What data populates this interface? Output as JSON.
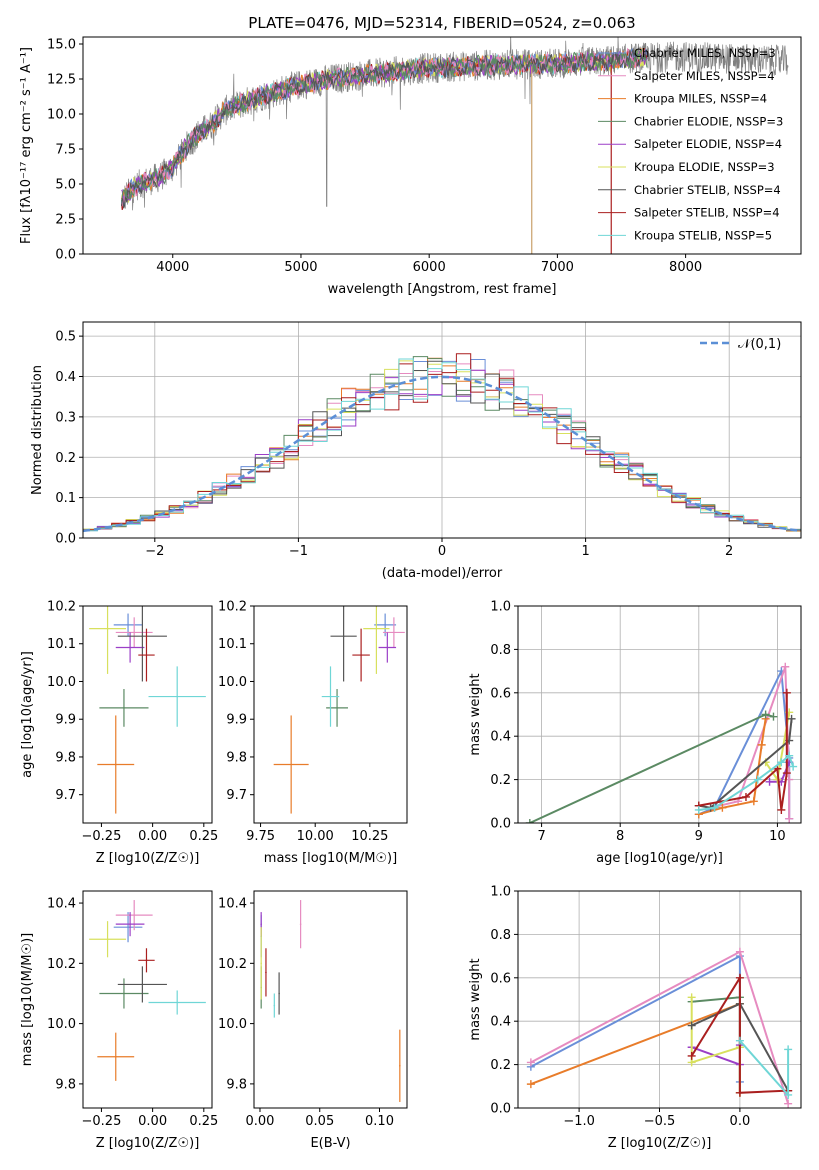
{
  "colors": [
    "#6a8fd8",
    "#e68bc0",
    "#e87c2a",
    "#5b8a63",
    "#9b3fc7",
    "#d8e05e",
    "#555555",
    "#aa1f1f",
    "#6fd6d6"
  ],
  "chart_data": [
    {
      "id": "spectrum",
      "type": "line",
      "title": "PLATE=0476, MJD=52314, FIBERID=0524, z=0.063",
      "xlabel": "wavelength [Angstrom, rest frame]",
      "ylabel": "Flux [fλ10⁻¹⁷ erg cm⁻² s⁻¹ A⁻¹]",
      "xlim": [
        3300,
        8900
      ],
      "ylim": [
        0,
        15.5
      ],
      "xticks": [
        4000,
        5000,
        6000,
        7000,
        8000
      ],
      "yticks": [
        0.0,
        2.5,
        5.0,
        7.5,
        10.0,
        12.5,
        15.0
      ],
      "continuum": {
        "x": [
          3600,
          3700,
          3800,
          3900,
          4000,
          4100,
          4200,
          4300,
          4400,
          4500,
          4700,
          5000,
          5300,
          5600,
          6000,
          6500,
          7000,
          7400,
          7600,
          8000,
          8500,
          8800
        ],
        "y": [
          3.8,
          4.8,
          5.2,
          5.5,
          6.2,
          7.6,
          8.6,
          9.2,
          10.2,
          10.6,
          11.3,
          12.1,
          12.6,
          12.9,
          13.3,
          13.5,
          13.6,
          13.8,
          14.0,
          14.1,
          13.9,
          13.8
        ]
      },
      "legend": [
        "Chabrier MILES, NSSP=3",
        "Salpeter MILES, NSSP=4",
        "Kroupa MILES, NSSP=4",
        "Chabrier ELODIE, NSSP=3",
        "Salpeter ELODIE, NSSP=4",
        "Kroupa ELODIE, NSSP=3",
        "Chabrier STELIB, NSSP=4",
        "Salpeter STELIB, NSSP=4",
        "Kroupa STELIB, NSSP=5"
      ],
      "legend_loc": "right"
    },
    {
      "id": "residuals",
      "type": "line",
      "xlabel": "(data-model)/error",
      "ylabel": "Normed distribution",
      "xlim": [
        -2.5,
        2.5
      ],
      "ylim": [
        0,
        0.535
      ],
      "xticks": [
        -2,
        -1,
        0,
        1,
        2
      ],
      "yticks": [
        0.0,
        0.1,
        0.2,
        0.3,
        0.4,
        0.5
      ],
      "grid": true,
      "gaussian_label": "𝒩(0,1)",
      "legend_loc": "top-right"
    },
    {
      "id": "age-vs-Z",
      "type": "scatter",
      "xlabel": "Z [log10(Z/Z☉)]",
      "ylabel": "age  [log10(age/yr)]",
      "xlim": [
        -0.34,
        0.29
      ],
      "ylim": [
        9.625,
        10.2
      ],
      "xticks": [
        -0.25,
        0.0,
        0.25
      ],
      "yticks": [
        9.7,
        9.8,
        9.9,
        10.0,
        10.1,
        10.2
      ],
      "points": [
        {
          "x": -0.12,
          "y": 10.15,
          "xerr": 0.07,
          "yerr": 0.03
        },
        {
          "x": -0.09,
          "y": 10.13,
          "xerr": 0.09,
          "yerr": 0.04
        },
        {
          "x": -0.18,
          "y": 9.78,
          "xerr": 0.09,
          "yerr": 0.13
        },
        {
          "x": -0.14,
          "y": 9.93,
          "xerr": 0.12,
          "yerr": 0.05
        },
        {
          "x": -0.11,
          "y": 10.09,
          "xerr": 0.07,
          "yerr": 0.04
        },
        {
          "x": -0.22,
          "y": 10.14,
          "xerr": 0.09,
          "yerr": 0.12
        },
        {
          "x": -0.05,
          "y": 10.12,
          "xerr": 0.12,
          "yerr": 0.12
        },
        {
          "x": -0.03,
          "y": 10.07,
          "xerr": 0.04,
          "yerr": 0.07
        },
        {
          "x": 0.12,
          "y": 9.96,
          "xerr": 0.14,
          "yerr": 0.08
        }
      ]
    },
    {
      "id": "age-vs-mass",
      "type": "scatter",
      "xlabel": "mass [log10(M/M☉)]",
      "ylabel": "",
      "xlim": [
        9.72,
        10.42
      ],
      "ylim": [
        9.625,
        10.2
      ],
      "xticks": [
        9.75,
        10.0,
        10.25
      ],
      "yticks": [
        9.7,
        9.8,
        9.9,
        10.0,
        10.1,
        10.2
      ],
      "points": [
        {
          "x": 10.32,
          "y": 10.15,
          "xerr": 0.05,
          "yerr": 0.03
        },
        {
          "x": 10.36,
          "y": 10.13,
          "xerr": 0.05,
          "yerr": 0.04
        },
        {
          "x": 9.89,
          "y": 9.78,
          "xerr": 0.08,
          "yerr": 0.13
        },
        {
          "x": 10.1,
          "y": 9.93,
          "xerr": 0.05,
          "yerr": 0.05
        },
        {
          "x": 10.33,
          "y": 10.09,
          "xerr": 0.04,
          "yerr": 0.04
        },
        {
          "x": 10.28,
          "y": 10.14,
          "xerr": 0.06,
          "yerr": 0.12
        },
        {
          "x": 10.13,
          "y": 10.12,
          "xerr": 0.06,
          "yerr": 0.12
        },
        {
          "x": 10.21,
          "y": 10.07,
          "xerr": 0.04,
          "yerr": 0.07
        },
        {
          "x": 10.07,
          "y": 9.96,
          "xerr": 0.04,
          "yerr": 0.08
        }
      ]
    },
    {
      "id": "mw-vs-age",
      "type": "line",
      "xlabel": "age  [log10(age/yr)]",
      "ylabel": "mass weight",
      "xlim": [
        6.7,
        10.3
      ],
      "ylim": [
        0,
        1.0
      ],
      "xticks": [
        7,
        8,
        9,
        10
      ],
      "yticks": [
        0.0,
        0.2,
        0.4,
        0.6,
        0.8,
        1.0
      ],
      "grid": true,
      "series": [
        {
          "x": [
            9.0,
            9.2,
            10.05,
            10.15,
            10.15
          ],
          "y": [
            0.04,
            0.07,
            0.7,
            0.3,
            0.02
          ]
        },
        {
          "x": [
            9.15,
            9.5,
            10.1,
            10.15,
            10.15
          ],
          "y": [
            0.07,
            0.1,
            0.72,
            0.2,
            0.02
          ]
        },
        {
          "x": [
            9.0,
            9.3,
            9.7,
            9.8,
            9.85
          ],
          "y": [
            0.04,
            0.07,
            0.1,
            0.36,
            0.48
          ]
        },
        {
          "x": [
            6.85,
            9.85,
            9.95
          ],
          "y": [
            0.0,
            0.5,
            0.49
          ]
        },
        {
          "x": [
            9.9,
            10.05,
            10.15
          ],
          "y": [
            0.19,
            0.19,
            0.28
          ]
        },
        {
          "x": [
            9.85,
            10.0,
            10.15
          ],
          "y": [
            0.28,
            0.2,
            0.51
          ]
        },
        {
          "x": [
            9.0,
            9.15,
            10.15,
            10.18
          ],
          "y": [
            0.08,
            0.07,
            0.38,
            0.48
          ]
        },
        {
          "x": [
            9.0,
            9.6,
            10.0,
            10.05,
            10.12,
            10.12
          ],
          "y": [
            0.08,
            0.12,
            0.25,
            0.06,
            0.23,
            0.6
          ]
        },
        {
          "x": [
            9.0,
            9.2,
            9.75,
            10.05,
            10.15,
            10.2
          ],
          "y": [
            0.06,
            0.07,
            0.2,
            0.28,
            0.31,
            0.26
          ]
        }
      ]
    },
    {
      "id": "mass-vs-Z",
      "type": "scatter",
      "xlabel": "Z [log10(Z/Z☉)]",
      "ylabel": "mass [log10(M/M☉)]",
      "xlim": [
        -0.34,
        0.29
      ],
      "ylim": [
        9.72,
        10.44
      ],
      "xticks": [
        -0.25,
        0.0,
        0.25
      ],
      "yticks": [
        9.8,
        10.0,
        10.2,
        10.4
      ],
      "points": [
        {
          "x": -0.12,
          "y": 10.32,
          "xerr": 0.07,
          "yerr": 0.05
        },
        {
          "x": -0.09,
          "y": 10.36,
          "xerr": 0.09,
          "yerr": 0.05
        },
        {
          "x": -0.18,
          "y": 9.89,
          "xerr": 0.09,
          "yerr": 0.08
        },
        {
          "x": -0.14,
          "y": 10.1,
          "xerr": 0.12,
          "yerr": 0.05
        },
        {
          "x": -0.11,
          "y": 10.33,
          "xerr": 0.07,
          "yerr": 0.04
        },
        {
          "x": -0.22,
          "y": 10.28,
          "xerr": 0.09,
          "yerr": 0.06
        },
        {
          "x": -0.05,
          "y": 10.13,
          "xerr": 0.12,
          "yerr": 0.06
        },
        {
          "x": -0.03,
          "y": 10.21,
          "xerr": 0.04,
          "yerr": 0.04
        },
        {
          "x": 0.12,
          "y": 10.07,
          "xerr": 0.14,
          "yerr": 0.04
        }
      ]
    },
    {
      "id": "mass-vs-EBV",
      "type": "scatter",
      "xlabel": "E(B-V)",
      "ylabel": "",
      "xlim": [
        -0.005,
        0.123
      ],
      "ylim": [
        9.72,
        10.44
      ],
      "xticks": [
        0.0,
        0.05,
        0.1
      ],
      "yticks": [
        9.8,
        10.0,
        10.2,
        10.4
      ],
      "points": [
        {
          "x": 0.001,
          "y": 10.29,
          "xerr": 0,
          "yerr": 0.07
        },
        {
          "x": 0.034,
          "y": 10.33,
          "xerr": 0,
          "yerr": 0.08
        },
        {
          "x": 0.117,
          "y": 9.86,
          "xerr": 0,
          "yerr": 0.12
        },
        {
          "x": 0.001,
          "y": 10.12,
          "xerr": 0,
          "yerr": 0.07
        },
        {
          "x": 0.001,
          "y": 10.33,
          "xerr": 0,
          "yerr": 0.04
        },
        {
          "x": 0.001,
          "y": 10.2,
          "xerr": 0,
          "yerr": 0.12
        },
        {
          "x": 0.016,
          "y": 10.1,
          "xerr": 0,
          "yerr": 0.07
        },
        {
          "x": 0.005,
          "y": 10.17,
          "xerr": 0,
          "yerr": 0.08
        },
        {
          "x": 0.012,
          "y": 10.06,
          "xerr": 0,
          "yerr": 0.04
        }
      ]
    },
    {
      "id": "mw-vs-Z",
      "type": "line",
      "xlabel": "Z [log10(Z/Z☉)]",
      "ylabel": "mass weight",
      "xlim": [
        -1.38,
        0.38
      ],
      "ylim": [
        0,
        1.0
      ],
      "xticks": [
        -1.0,
        -0.5,
        0.0
      ],
      "yticks": [
        0.0,
        0.2,
        0.4,
        0.6,
        0.8,
        1.0
      ],
      "grid": true,
      "series": [
        {
          "x": [
            -1.3,
            0.0,
            0.0
          ],
          "y": [
            0.19,
            0.7,
            0.12
          ]
        },
        {
          "x": [
            -1.3,
            0.0,
            0.3
          ],
          "y": [
            0.21,
            0.72,
            0.02
          ]
        },
        {
          "x": [
            -1.3,
            0.0,
            0.0
          ],
          "y": [
            0.11,
            0.48,
            0.07
          ]
        },
        {
          "x": [
            -0.3,
            0.0,
            0.0
          ],
          "y": [
            0.49,
            0.51,
            0.07
          ]
        },
        {
          "x": [
            -0.3,
            0.0,
            0.0
          ],
          "y": [
            0.28,
            0.2,
            0.29
          ]
        },
        {
          "x": [
            -0.3,
            -0.3,
            0.0,
            0.0
          ],
          "y": [
            0.51,
            0.21,
            0.28,
            0.07
          ]
        },
        {
          "x": [
            -0.3,
            0.0,
            0.3
          ],
          "y": [
            0.38,
            0.48,
            0.08
          ]
        },
        {
          "x": [
            -0.3,
            0.0,
            0.0,
            0.3
          ],
          "y": [
            0.24,
            0.6,
            0.07,
            0.08
          ]
        },
        {
          "x": [
            0.0,
            0.3,
            0.3
          ],
          "y": [
            0.31,
            0.06,
            0.27
          ]
        }
      ]
    }
  ]
}
